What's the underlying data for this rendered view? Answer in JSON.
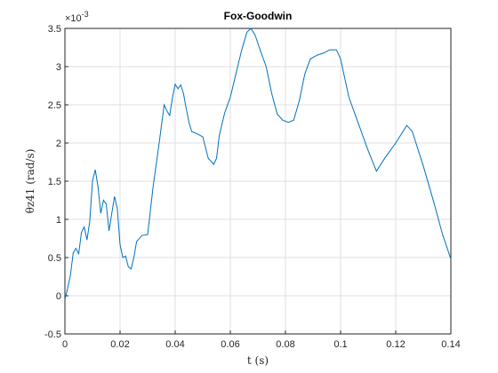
{
  "chart_data": {
    "type": "line",
    "title": "Fox-Goodwin",
    "xlabel": "t (s)",
    "ylabel": "θz41 (rad/s)",
    "y_multiplier": "×10",
    "y_exponent": "-3",
    "x": [
      0,
      0.001,
      0.002,
      0.003,
      0.004,
      0.005,
      0.006,
      0.007,
      0.008,
      0.009,
      0.01,
      0.011,
      0.012,
      0.013,
      0.014,
      0.015,
      0.016,
      0.017,
      0.018,
      0.019,
      0.02,
      0.021,
      0.022,
      0.023,
      0.024,
      0.025,
      0.026,
      0.028,
      0.03,
      0.032,
      0.034,
      0.036,
      0.037,
      0.038,
      0.039,
      0.04,
      0.041,
      0.042,
      0.043,
      0.044,
      0.045,
      0.046,
      0.048,
      0.05,
      0.052,
      0.054,
      0.055,
      0.056,
      0.058,
      0.06,
      0.062,
      0.064,
      0.066,
      0.0675,
      0.069,
      0.071,
      0.073,
      0.075,
      0.077,
      0.079,
      0.081,
      0.083,
      0.085,
      0.087,
      0.089,
      0.0915,
      0.094,
      0.096,
      0.0985,
      0.1,
      0.103,
      0.106,
      0.11,
      0.113,
      0.116,
      0.12,
      0.124,
      0.126,
      0.13,
      0.134,
      0.137,
      0.14
    ],
    "series": [
      {
        "color": "#0072bd",
        "values": [
          -0.05,
          0.1,
          0.27,
          0.56,
          0.62,
          0.55,
          0.83,
          0.9,
          0.73,
          0.97,
          1.5,
          1.65,
          1.43,
          1.08,
          1.25,
          1.2,
          0.85,
          1.08,
          1.3,
          1.14,
          0.67,
          0.5,
          0.52,
          0.38,
          0.35,
          0.5,
          0.71,
          0.79,
          0.8,
          1.43,
          1.95,
          2.5,
          2.42,
          2.36,
          2.59,
          2.77,
          2.71,
          2.76,
          2.65,
          2.45,
          2.27,
          2.15,
          2.12,
          2.08,
          1.8,
          1.72,
          1.8,
          2.1,
          2.4,
          2.6,
          2.9,
          3.2,
          3.45,
          3.5,
          3.41,
          3.2,
          3.0,
          2.65,
          2.38,
          2.3,
          2.27,
          2.3,
          2.55,
          2.9,
          3.1,
          3.15,
          3.18,
          3.22,
          3.22,
          3.1,
          2.6,
          2.3,
          1.9,
          1.63,
          1.8,
          2.0,
          2.23,
          2.15,
          1.7,
          1.2,
          0.8,
          0.48
        ]
      }
    ],
    "xlim": [
      0,
      0.14
    ],
    "xticks": [
      0,
      0.02,
      0.04,
      0.06,
      0.08,
      0.1,
      0.12,
      0.14
    ],
    "ylim": [
      -0.5,
      3.5
    ],
    "yticks": [
      -0.5,
      0,
      0.5,
      1,
      1.5,
      2,
      2.5,
      3,
      3.5
    ],
    "grid": true
  }
}
